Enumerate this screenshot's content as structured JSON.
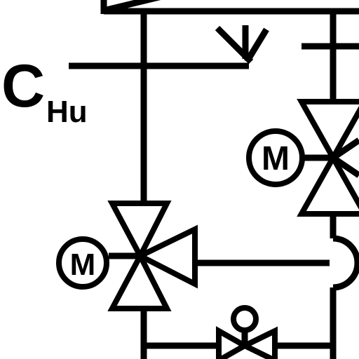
{
  "diagram": {
    "label_main": "C",
    "label_sub": "Hu",
    "motor_upper": "M",
    "motor_lower": "M"
  },
  "colors": {
    "line": "#000000",
    "background": "#ffffff"
  },
  "icons": {
    "valve": "three-way-valve-icon",
    "motor": "motor-actuator-icon",
    "flow_arrow": "flow-arrow-icon",
    "hand_valve": "manual-valve-icon"
  }
}
